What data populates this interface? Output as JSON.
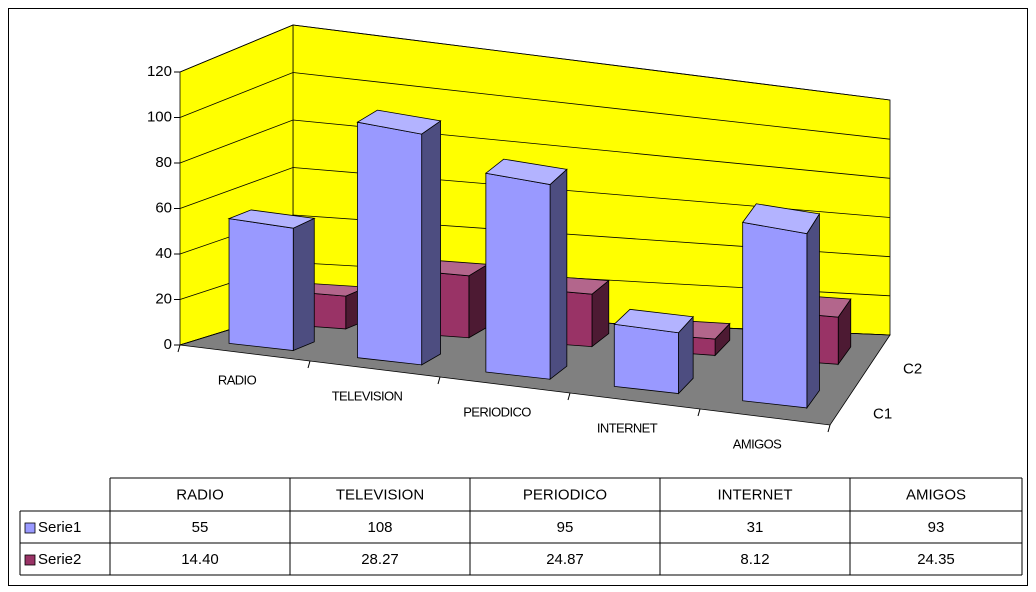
{
  "chart_data": {
    "type": "bar3d",
    "categories": [
      "RADIO",
      "TELEVISION",
      "PERIODICO",
      "INTERNET",
      "AMIGOS"
    ],
    "z_categories": [
      "C1",
      "C2"
    ],
    "series": [
      {
        "name": "Serie1",
        "color": "#9999ff",
        "values": [
          55,
          108,
          95,
          31,
          93
        ]
      },
      {
        "name": "Serie2",
        "color": "#993366",
        "values": [
          14.4,
          28.27,
          24.87,
          8.12,
          24.35
        ],
        "value_labels": [
          "14.40",
          "28.27",
          "24.87",
          "8.12",
          "24.35"
        ]
      }
    ],
    "ylim": [
      0,
      120
    ],
    "yticks": [
      0,
      20,
      40,
      60,
      80,
      100,
      120
    ],
    "grid": true,
    "wall_color": "#ffff00",
    "floor_color": "#808080",
    "data_table": true
  }
}
